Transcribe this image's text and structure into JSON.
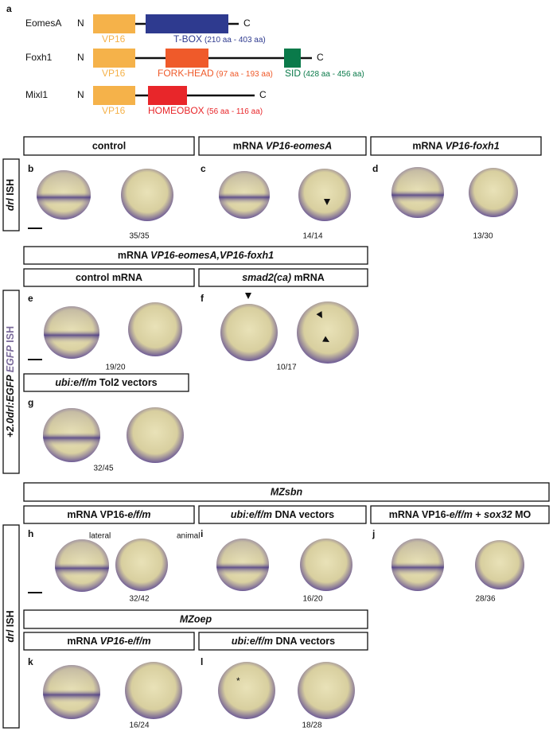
{
  "panel_a": {
    "label": "a",
    "proteins": [
      {
        "name": "EomesA",
        "n_term": "N",
        "c_term": "C",
        "domains": [
          {
            "name": "VP16",
            "color": "#f5b24a"
          },
          {
            "name": "T-BOX",
            "range": "(210 aa - 403 aa)",
            "color": "#2e3a8f"
          }
        ]
      },
      {
        "name": "Foxh1",
        "n_term": "N",
        "c_term": "C",
        "domains": [
          {
            "name": "VP16",
            "color": "#f5b24a"
          },
          {
            "name": "FORK-HEAD",
            "range": "(97 aa - 193 aa)",
            "color": "#ef5a2a"
          },
          {
            "name": "SID",
            "range": "(428 aa - 456 aa)",
            "color": "#0a7a4a"
          }
        ]
      },
      {
        "name": "Mixl1",
        "n_term": "N",
        "c_term": "C",
        "domains": [
          {
            "name": "VP16",
            "color": "#f5b24a"
          },
          {
            "name": "HOMEOBOX",
            "range": "(56 aa - 116 aa)",
            "color": "#e8262a"
          }
        ]
      }
    ]
  },
  "headers": [
    {
      "segments": [
        {
          "text": "control"
        }
      ]
    },
    {
      "segments": [
        {
          "text": "mRNA "
        },
        {
          "text": "VP16-eomesA",
          "italic": true
        }
      ]
    },
    {
      "segments": [
        {
          "text": "mRNA "
        },
        {
          "text": "VP16-foxh1",
          "italic": true
        }
      ]
    },
    {
      "segments": [
        {
          "text": "mRNA "
        },
        {
          "text": "VP16-eomesA,VP16-foxh1",
          "italic": true
        }
      ]
    },
    {
      "segments": [
        {
          "text": "control mRNA"
        }
      ]
    },
    {
      "segments": [
        {
          "text": "smad2(ca)",
          "italic": true
        },
        {
          "text": " mRNA"
        }
      ]
    },
    {
      "segments": [
        {
          "text": "ubi:e/f/m",
          "italic": true
        },
        {
          "text": " Tol2 vectors"
        }
      ]
    },
    {
      "segments": [
        {
          "text": "MZsbn",
          "italic": true
        }
      ]
    },
    {
      "segments": [
        {
          "text": "mRNA VP16-"
        },
        {
          "text": "e/f/m",
          "italic": true
        }
      ]
    },
    {
      "segments": [
        {
          "text": "ubi:e/f/m",
          "italic": true
        },
        {
          "text": " DNA vectors"
        }
      ]
    },
    {
      "segments": [
        {
          "text": "mRNA VP16-"
        },
        {
          "text": "e/f/m",
          "italic": true
        },
        {
          "text": " + "
        },
        {
          "text": "sox32",
          "italic": true
        },
        {
          "text": " MO"
        }
      ]
    },
    {
      "segments": [
        {
          "text": "MZoep",
          "italic": true
        }
      ]
    },
    {
      "segments": [
        {
          "text": "mRNA "
        },
        {
          "text": "VP16-e/f/m",
          "italic": true
        }
      ]
    },
    {
      "segments": [
        {
          "text": "ubi:e/f/m",
          "italic": true
        },
        {
          "text": " DNA vectors"
        }
      ]
    }
  ],
  "side_labels": [
    {
      "segments": [
        {
          "text": "drl",
          "italic": true
        },
        {
          "text": " ISH"
        }
      ]
    },
    {
      "segments": [
        {
          "text": "+2.0drl:EGFP",
          "italic": true
        },
        {
          "text": " EGFP",
          "italic": true,
          "color": "#7a6a9a"
        },
        {
          "text": " ISH",
          "color": "#7a6a9a"
        }
      ]
    },
    {
      "segments": [
        {
          "text": "drl",
          "italic": true
        },
        {
          "text": " ISH"
        }
      ]
    }
  ],
  "panels": [
    {
      "label": "b",
      "count": "35/35"
    },
    {
      "label": "c",
      "count": "14/14"
    },
    {
      "label": "d",
      "count": "13/30"
    },
    {
      "label": "e",
      "count": "19/20"
    },
    {
      "label": "f",
      "count": "10/17"
    },
    {
      "label": "g",
      "count": "32/45"
    },
    {
      "label": "h",
      "count": "32/42"
    },
    {
      "label": "i",
      "count": "16/20"
    },
    {
      "label": "j",
      "count": "28/36"
    },
    {
      "label": "k",
      "count": "16/24"
    },
    {
      "label": "l",
      "count": "18/28"
    }
  ],
  "view_labels": [
    "lateral",
    "animal"
  ],
  "asterisk": "*"
}
